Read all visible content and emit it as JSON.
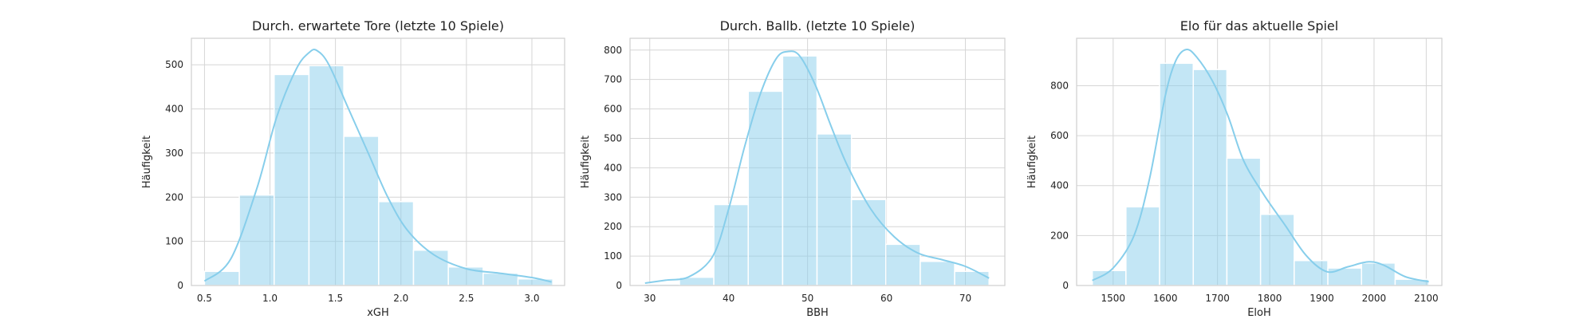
{
  "chart_data": [
    {
      "type": "bar",
      "title": "Durch. erwartete Tore (letzte 10 Spiele)",
      "xlabel": "xGH",
      "ylabel": "Häufigkeit",
      "xlim": [
        0.4,
        3.25
      ],
      "ylim": [
        0,
        560
      ],
      "xticks": [
        0.5,
        1.0,
        1.5,
        2.0,
        2.5,
        3.0
      ],
      "xtick_labels": [
        "0.5",
        "1.0",
        "1.5",
        "2.0",
        "2.5",
        "3.0"
      ],
      "yticks": [
        0,
        100,
        200,
        300,
        400,
        500
      ],
      "bin_edges": [
        0.5,
        0.766,
        1.032,
        1.298,
        1.564,
        1.83,
        2.096,
        2.362,
        2.628,
        2.894,
        3.16
      ],
      "values": [
        32,
        205,
        478,
        498,
        338,
        190,
        80,
        42,
        28,
        15
      ],
      "kde": {
        "x": [
          0.5,
          0.7,
          0.9,
          1.05,
          1.2,
          1.3,
          1.36,
          1.45,
          1.6,
          1.75,
          1.9,
          2.05,
          2.25,
          2.5,
          2.75,
          3.0,
          3.15
        ],
        "y": [
          10,
          60,
          220,
          380,
          490,
          528,
          532,
          500,
          400,
          300,
          200,
          125,
          70,
          38,
          28,
          18,
          8
        ]
      },
      "grid": true,
      "color": "#87ceeb"
    },
    {
      "type": "bar",
      "title": "Durch. Ballb. (letzte 10 Spiele)",
      "xlabel": "BBH",
      "ylabel": "Häufigkeit",
      "xlim": [
        27.5,
        75
      ],
      "ylim": [
        0,
        840
      ],
      "xticks": [
        30,
        40,
        50,
        60,
        70
      ],
      "xtick_labels": [
        "30",
        "40",
        "50",
        "60",
        "70"
      ],
      "yticks": [
        0,
        100,
        200,
        300,
        400,
        500,
        600,
        700,
        800
      ],
      "bin_edges": [
        29.4,
        33.76,
        38.12,
        42.48,
        46.84,
        51.2,
        55.56,
        59.92,
        64.28,
        68.64,
        73.0
      ],
      "values": [
        5,
        28,
        275,
        660,
        780,
        515,
        292,
        140,
        82,
        48
      ],
      "kde": {
        "x": [
          29.4,
          32,
          35,
          38,
          40,
          42,
          44,
          46,
          47.5,
          49,
          51,
          53,
          55,
          58,
          61,
          64,
          67,
          70,
          73
        ],
        "y": [
          8,
          18,
          30,
          100,
          260,
          470,
          650,
          770,
          795,
          780,
          680,
          540,
          410,
          260,
          165,
          110,
          88,
          65,
          25
        ]
      },
      "grid": true,
      "color": "#87ceeb"
    },
    {
      "type": "bar",
      "title": "Elo für das aktuelle Spiel",
      "xlabel": "EloH",
      "ylabel": "Häufigkeit",
      "xlim": [
        1430,
        2130
      ],
      "ylim": [
        0,
        990
      ],
      "xticks": [
        1500,
        1600,
        1700,
        1800,
        1900,
        2000,
        2100
      ],
      "xtick_labels": [
        "1500",
        "1600",
        "1700",
        "1800",
        "1900",
        "2000",
        "2100"
      ],
      "yticks": [
        0,
        200,
        400,
        600,
        800
      ],
      "bin_edges": [
        1460,
        1524.5,
        1589,
        1653.5,
        1718,
        1782.5,
        1847,
        1911.5,
        1976,
        2040.5,
        2105
      ],
      "values": [
        60,
        315,
        890,
        865,
        510,
        285,
        100,
        70,
        90,
        25
      ],
      "kde": {
        "x": [
          1460,
          1500,
          1540,
          1570,
          1600,
          1620,
          1640,
          1660,
          1690,
          1720,
          1750,
          1790,
          1830,
          1870,
          1910,
          1950,
          1990,
          2020,
          2060,
          2105
        ],
        "y": [
          20,
          70,
          200,
          430,
          760,
          900,
          945,
          915,
          820,
          680,
          500,
          360,
          240,
          120,
          55,
          75,
          95,
          80,
          35,
          15
        ]
      },
      "grid": true,
      "color": "#87ceeb"
    }
  ]
}
